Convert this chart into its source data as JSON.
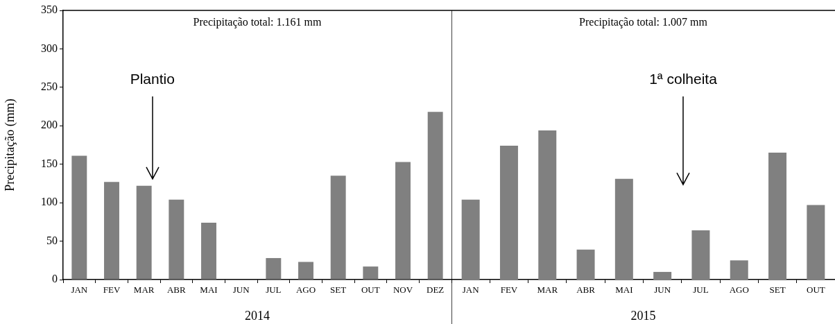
{
  "chart_data": [
    {
      "type": "bar",
      "xlabel": "2014",
      "ylabel": "Precipitação (mm)",
      "categories": [
        "JAN",
        "FEV",
        "MAR",
        "ABR",
        "MAI",
        "JUN",
        "JUL",
        "AGO",
        "SET",
        "OUT",
        "NOV",
        "DEZ"
      ],
      "values": [
        161,
        127,
        122,
        104,
        74,
        0,
        28,
        23,
        135,
        17,
        153,
        218
      ],
      "color": "#808080",
      "ylim": [
        0,
        350
      ],
      "yticks": [
        0,
        50,
        100,
        150,
        200,
        250,
        300,
        350
      ],
      "annotations": [
        "Precipitação total: 1.161 mm",
        "Plantio"
      ]
    },
    {
      "type": "bar",
      "xlabel": "2015",
      "categories": [
        "JAN",
        "FEV",
        "MAR",
        "ABR",
        "MAI",
        "JUN",
        "JUL",
        "AGO",
        "SET",
        "OUT"
      ],
      "values": [
        104,
        174,
        194,
        39,
        131,
        10,
        64,
        25,
        165,
        97
      ],
      "color": "#808080",
      "ylim": [
        0,
        350
      ],
      "yticks": [
        0,
        50,
        100,
        150,
        200,
        250,
        300,
        350
      ],
      "tick_labels": "x",
      "annotations": [
        "Precipitação total: 1.007 mm",
        "1ª colheita"
      ]
    }
  ]
}
